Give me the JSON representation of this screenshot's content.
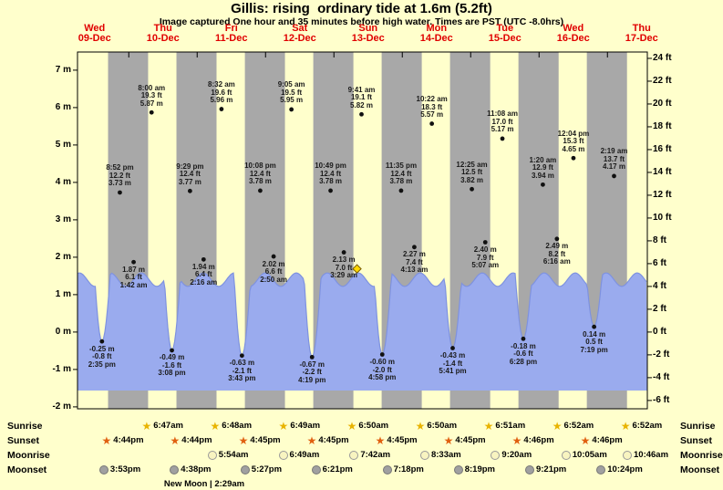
{
  "title": "Gillis: rising  ordinary tide at 1.6m (5.2ft)",
  "subtitle": "Image captured One hour and 35 minutes before high water. Times are PST (UTC -8.0hrs)",
  "days": [
    {
      "name": "Wed",
      "date": "09-Dec"
    },
    {
      "name": "Thu",
      "date": "10-Dec"
    },
    {
      "name": "Fri",
      "date": "11-Dec"
    },
    {
      "name": "Sat",
      "date": "12-Dec"
    },
    {
      "name": "Sun",
      "date": "13-Dec"
    },
    {
      "name": "Mon",
      "date": "14-Dec"
    },
    {
      "name": "Tue",
      "date": "15-Dec"
    },
    {
      "name": "Wed",
      "date": "16-Dec"
    },
    {
      "name": "Thu",
      "date": "17-Dec"
    }
  ],
  "axes": {
    "left_ticks": [
      {
        "v": 7,
        "label": "7 m"
      },
      {
        "v": 6,
        "label": "6 m"
      },
      {
        "v": 5,
        "label": "5 m"
      },
      {
        "v": 4,
        "label": "4 m"
      },
      {
        "v": 3,
        "label": "3 m"
      },
      {
        "v": 2,
        "label": "2 m"
      },
      {
        "v": 1,
        "label": "1 m"
      },
      {
        "v": 0,
        "label": "0 m"
      },
      {
        "v": -1,
        "label": "-1 m"
      },
      {
        "v": -2,
        "label": "-2 m"
      }
    ],
    "right_ticks": [
      {
        "v": 24,
        "label": "24 ft"
      },
      {
        "v": 22,
        "label": "22 ft"
      },
      {
        "v": 20,
        "label": "20 ft"
      },
      {
        "v": 18,
        "label": "18 ft"
      },
      {
        "v": 16,
        "label": "16 ft"
      },
      {
        "v": 14,
        "label": "14 ft"
      },
      {
        "v": 12,
        "label": "12 ft"
      },
      {
        "v": 10,
        "label": "10 ft"
      },
      {
        "v": 8,
        "label": "8 ft"
      },
      {
        "v": 6,
        "label": "6 ft"
      },
      {
        "v": 4,
        "label": "4 ft"
      },
      {
        "v": 2,
        "label": "2 ft"
      },
      {
        "v": 0,
        "label": "0 ft"
      },
      {
        "v": -2,
        "label": "-2 ft"
      },
      {
        "v": -4,
        "label": "-4 ft"
      },
      {
        "v": -6,
        "label": "-6 ft"
      }
    ]
  },
  "chart_data": {
    "type": "area",
    "x_axis": "time, Wed 09-Dec through Thu 17-Dec (PST)",
    "y_axis_left": {
      "unit": "m",
      "range": [
        -2,
        7
      ]
    },
    "y_axis_right": {
      "unit": "ft",
      "range": [
        -6,
        24
      ]
    },
    "current_tide": {
      "state": "rising",
      "height_m": 1.6,
      "height_ft": 5.2,
      "note": "captured 1 hour 35 minutes before high water"
    },
    "current_marker": {
      "d": 4,
      "t": "08:06"
    },
    "events": [
      {
        "d": 0,
        "t": "14:35",
        "type": "low",
        "m": -0.25,
        "ft": -0.8,
        "lines": [
          "-0.25 m",
          "-0.8 ft",
          "2:35 pm"
        ]
      },
      {
        "d": 0,
        "t": "20:52",
        "type": "high",
        "m": 3.73,
        "ft": 12.2,
        "lines": [
          "8:52 pm",
          "12.2 ft",
          "3.73 m"
        ]
      },
      {
        "d": 1,
        "t": "01:42",
        "type": "low",
        "m": 1.87,
        "ft": 6.1,
        "lines": [
          "1.87 m",
          "6.1 ft",
          "1:42 am"
        ]
      },
      {
        "d": 1,
        "t": "08:00",
        "type": "high",
        "m": 5.87,
        "ft": 19.3,
        "lines": [
          "8:00 am",
          "19.3 ft",
          "5.87 m"
        ]
      },
      {
        "d": 1,
        "t": "15:08",
        "type": "low",
        "m": -0.49,
        "ft": -1.6,
        "lines": [
          "-0.49 m",
          "-1.6 ft",
          "3:08 pm"
        ]
      },
      {
        "d": 1,
        "t": "21:29",
        "type": "high",
        "m": 3.77,
        "ft": 12.4,
        "lines": [
          "9:29 pm",
          "12.4 ft",
          "3.77 m"
        ]
      },
      {
        "d": 2,
        "t": "02:16",
        "type": "low",
        "m": 1.94,
        "ft": 6.4,
        "lines": [
          "1.94 m",
          "6.4 ft",
          "2:16 am"
        ]
      },
      {
        "d": 2,
        "t": "08:32",
        "type": "high",
        "m": 5.96,
        "ft": 19.6,
        "lines": [
          "8:32 am",
          "19.6 ft",
          "5.96 m"
        ]
      },
      {
        "d": 2,
        "t": "15:43",
        "type": "low",
        "m": -0.63,
        "ft": -2.1,
        "lines": [
          "-0.63 m",
          "-2.1 ft",
          "3:43 pm"
        ]
      },
      {
        "d": 2,
        "t": "22:08",
        "type": "high",
        "m": 3.78,
        "ft": 12.4,
        "lines": [
          "10:08 pm",
          "12.4 ft",
          "3.78 m"
        ]
      },
      {
        "d": 3,
        "t": "02:50",
        "type": "low",
        "m": 2.02,
        "ft": 6.6,
        "lines": [
          "2.02 m",
          "6.6 ft",
          "2:50 am"
        ]
      },
      {
        "d": 3,
        "t": "09:05",
        "type": "high",
        "m": 5.95,
        "ft": 19.5,
        "lines": [
          "9:05 am",
          "19.5 ft",
          "5.95 m"
        ]
      },
      {
        "d": 3,
        "t": "16:19",
        "type": "low",
        "m": -0.67,
        "ft": -2.2,
        "lines": [
          "-0.67 m",
          "-2.2 ft",
          "4:19 pm"
        ]
      },
      {
        "d": 3,
        "t": "22:49",
        "type": "high",
        "m": 3.78,
        "ft": 12.4,
        "lines": [
          "10:49 pm",
          "12.4 ft",
          "3.78 m"
        ]
      },
      {
        "d": 4,
        "t": "03:29",
        "type": "low",
        "m": 2.13,
        "ft": 7.0,
        "lines": [
          "2.13 m",
          "7.0 ft",
          "3:29 am"
        ]
      },
      {
        "d": 4,
        "t": "09:41",
        "type": "high",
        "m": 5.82,
        "ft": 19.1,
        "lines": [
          "9:41 am",
          "19.1 ft",
          "5.82 m"
        ]
      },
      {
        "d": 4,
        "t": "16:58",
        "type": "low",
        "m": -0.6,
        "ft": -2.0,
        "lines": [
          "-0.60 m",
          "-2.0 ft",
          "4:58 pm"
        ]
      },
      {
        "d": 4,
        "t": "23:35",
        "type": "high",
        "m": 3.78,
        "ft": 12.4,
        "lines": [
          "11:35 pm",
          "12.4 ft",
          "3.78 m"
        ]
      },
      {
        "d": 5,
        "t": "04:13",
        "type": "low",
        "m": 2.27,
        "ft": 7.4,
        "lines": [
          "2.27 m",
          "7.4 ft",
          "4:13 am"
        ]
      },
      {
        "d": 5,
        "t": "10:22",
        "type": "high",
        "m": 5.57,
        "ft": 18.3,
        "lines": [
          "10:22 am",
          "18.3 ft",
          "5.57 m"
        ]
      },
      {
        "d": 5,
        "t": "17:41",
        "type": "low",
        "m": -0.43,
        "ft": -1.4,
        "lines": [
          "-0.43 m",
          "-1.4 ft",
          "5:41 pm"
        ]
      },
      {
        "d": 6,
        "t": "00:25",
        "type": "high",
        "m": 3.82,
        "ft": 12.5,
        "lines": [
          "12:25 am",
          "12.5 ft",
          "3.82 m"
        ]
      },
      {
        "d": 6,
        "t": "05:07",
        "type": "low",
        "m": 2.4,
        "ft": 7.9,
        "lines": [
          "2.40 m",
          "7.9 ft",
          "5:07 am"
        ]
      },
      {
        "d": 6,
        "t": "11:08",
        "type": "high",
        "m": 5.17,
        "ft": 17.0,
        "lines": [
          "11:08 am",
          "17.0 ft",
          "5.17 m"
        ]
      },
      {
        "d": 6,
        "t": "18:28",
        "type": "low",
        "m": -0.18,
        "ft": -0.6,
        "lines": [
          "-0.18 m",
          "-0.6 ft",
          "6:28 pm"
        ]
      },
      {
        "d": 7,
        "t": "01:20",
        "type": "high",
        "m": 3.94,
        "ft": 12.9,
        "lines": [
          "1:20 am",
          "12.9 ft",
          "3.94 m"
        ]
      },
      {
        "d": 7,
        "t": "06:16",
        "type": "low",
        "m": 2.49,
        "ft": 8.2,
        "lines": [
          "2.49 m",
          "8.2 ft",
          "6:16 am"
        ]
      },
      {
        "d": 7,
        "t": "12:04",
        "type": "high",
        "m": 4.65,
        "ft": 15.3,
        "lines": [
          "12:04 pm",
          "15.3 ft",
          "4.65 m"
        ]
      },
      {
        "d": 7,
        "t": "19:19",
        "type": "low",
        "m": 0.14,
        "ft": 0.5,
        "lines": [
          "0.14 m",
          "0.5 ft",
          "7:19 pm"
        ]
      },
      {
        "d": 8,
        "t": "02:19",
        "type": "high",
        "m": 4.17,
        "ft": 13.7,
        "lines": [
          "2:19 am",
          "13.7 ft",
          "4.17 m"
        ]
      }
    ]
  },
  "astro": {
    "row_labels": {
      "sunrise": "Sunrise",
      "sunset": "Sunset",
      "moonrise": "Moonrise",
      "moonset": "Moonset"
    },
    "sunrise": [
      {
        "d": 1,
        "time": "6:47am"
      },
      {
        "d": 2,
        "time": "6:48am"
      },
      {
        "d": 3,
        "time": "6:49am"
      },
      {
        "d": 4,
        "time": "6:50am"
      },
      {
        "d": 5,
        "time": "6:50am"
      },
      {
        "d": 6,
        "time": "6:51am"
      },
      {
        "d": 7,
        "time": "6:52am"
      },
      {
        "d": 8,
        "time": "6:52am"
      }
    ],
    "sunset": [
      {
        "d": 0,
        "time": "4:44pm"
      },
      {
        "d": 1,
        "time": "4:44pm"
      },
      {
        "d": 2,
        "time": "4:45pm"
      },
      {
        "d": 3,
        "time": "4:45pm"
      },
      {
        "d": 4,
        "time": "4:45pm"
      },
      {
        "d": 5,
        "time": "4:45pm"
      },
      {
        "d": 6,
        "time": "4:46pm"
      },
      {
        "d": 7,
        "time": "4:46pm"
      }
    ],
    "moonrise": [
      {
        "d": 2,
        "time": "5:54am"
      },
      {
        "d": 3,
        "time": "6:49am"
      },
      {
        "d": 4,
        "time": "7:42am"
      },
      {
        "d": 5,
        "time": "8:33am"
      },
      {
        "d": 6,
        "time": "9:20am"
      },
      {
        "d": 7,
        "time": "10:05am"
      },
      {
        "d": 8,
        "time": "10:46am"
      }
    ],
    "moonset": [
      {
        "d": 0,
        "time": "3:53pm"
      },
      {
        "d": 1,
        "time": "4:38pm"
      },
      {
        "d": 2,
        "time": "5:27pm"
      },
      {
        "d": 3,
        "time": "6:21pm"
      },
      {
        "d": 4,
        "time": "7:18pm"
      },
      {
        "d": 5,
        "time": "8:19pm"
      },
      {
        "d": 6,
        "time": "9:21pm"
      },
      {
        "d": 7,
        "time": "10:24pm"
      }
    ],
    "new_moon": {
      "d": 2,
      "t": "02:29",
      "label": "New Moon | 2:29am"
    }
  },
  "colors": {
    "background": "#ffffcc",
    "night_band": "#a8a8a8",
    "water_fill": "#9aabee",
    "water_edge": "#7e92e0",
    "day_label": "#e00000",
    "dot": "#111111",
    "current_marker_fill": "#ffd700",
    "current_marker_edge": "#7a5c00",
    "sunrise_star": "#e8b300",
    "sunset_star": "#e06010",
    "moonrise_dot": "#f8f4c0",
    "moonset_dot": "#a0a0a0"
  }
}
